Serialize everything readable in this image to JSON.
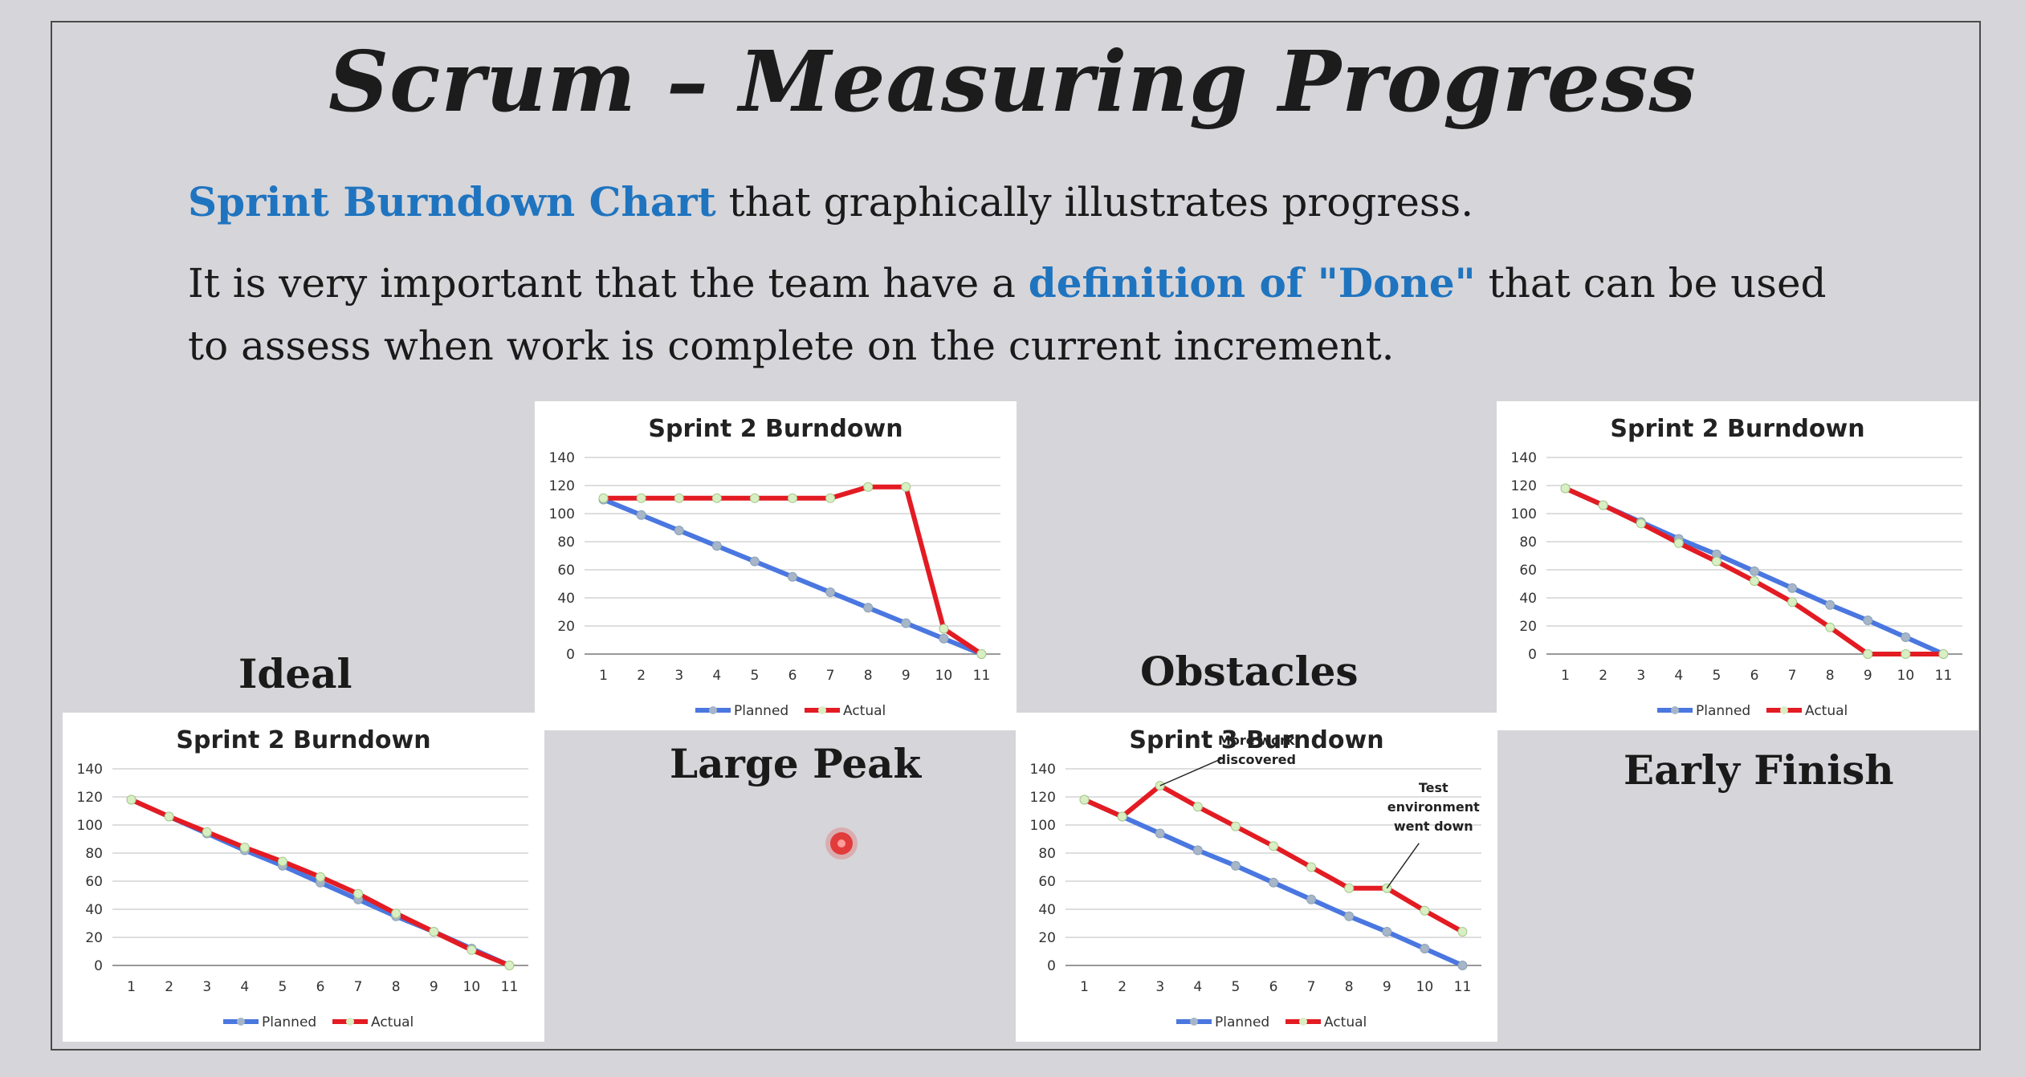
{
  "slide": {
    "title": "Scrum – Measuring Progress",
    "para1": {
      "highlight": "Sprint Burndown Chart",
      "rest": " that graphically illustrates progress."
    },
    "para2": {
      "before": "It is very important that the team have a ",
      "highlight": "definition of \"Done\"",
      "after": " that can be used to assess when work is complete on the current increment."
    },
    "labels": {
      "ideal": "Ideal",
      "large_peak": "Large Peak",
      "obstacles": "Obstacles",
      "early_finish": "Early Finish"
    }
  },
  "colors": {
    "accent": "#1f74bf",
    "planned": "#4a77e0",
    "actual": "#e31b23",
    "marker_planned": "#a6b6c8",
    "marker_actual": "#d8efc4"
  },
  "chart_data": [
    {
      "type": "line",
      "title": "Sprint 2 Burndown",
      "x": [
        1,
        2,
        3,
        4,
        5,
        6,
        7,
        8,
        9,
        10,
        11
      ],
      "ylim": [
        0,
        140
      ],
      "yticks": [
        0,
        20,
        40,
        60,
        80,
        100,
        120,
        140
      ],
      "grid": true,
      "legend": "bottom",
      "series": [
        {
          "name": "Planned",
          "values": [
            118,
            106,
            94,
            82,
            71,
            59,
            47,
            35,
            24,
            12,
            0
          ]
        },
        {
          "name": "Actual",
          "values": [
            118,
            106,
            95,
            84,
            74,
            63,
            51,
            37,
            24,
            11,
            0
          ]
        }
      ],
      "annotations": []
    },
    {
      "type": "line",
      "title": "Sprint 2 Burndown",
      "x": [
        1,
        2,
        3,
        4,
        5,
        6,
        7,
        8,
        9,
        10,
        11
      ],
      "ylim": [
        0,
        140
      ],
      "yticks": [
        0,
        20,
        40,
        60,
        80,
        100,
        120,
        140
      ],
      "grid": true,
      "legend": "bottom",
      "series": [
        {
          "name": "Planned",
          "values": [
            110,
            99,
            88,
            77,
            66,
            55,
            44,
            33,
            22,
            11,
            0
          ]
        },
        {
          "name": "Actual",
          "values": [
            111,
            111,
            111,
            111,
            111,
            111,
            111,
            119,
            119,
            18,
            0
          ]
        }
      ],
      "annotations": []
    },
    {
      "type": "line",
      "title": "Sprint 3 Burndown",
      "x": [
        1,
        2,
        3,
        4,
        5,
        6,
        7,
        8,
        9,
        10,
        11
      ],
      "ylim": [
        0,
        140
      ],
      "yticks": [
        0,
        20,
        40,
        60,
        80,
        100,
        120,
        140
      ],
      "grid": true,
      "legend": "bottom",
      "series": [
        {
          "name": "Planned",
          "values": [
            118,
            106,
            94,
            82,
            71,
            59,
            47,
            35,
            24,
            12,
            0
          ]
        },
        {
          "name": "Actual",
          "values": [
            118,
            106,
            128,
            113,
            99,
            85,
            70,
            55,
            55,
            39,
            24
          ]
        }
      ],
      "annotations": [
        {
          "text": [
            "More work",
            "discovered"
          ],
          "x": 3,
          "y": 128
        },
        {
          "text": [
            "Test",
            "environment",
            "went down"
          ],
          "x": 9,
          "y": 55
        }
      ]
    },
    {
      "type": "line",
      "title": "Sprint 2 Burndown",
      "x": [
        1,
        2,
        3,
        4,
        5,
        6,
        7,
        8,
        9,
        10,
        11
      ],
      "ylim": [
        0,
        140
      ],
      "yticks": [
        0,
        20,
        40,
        60,
        80,
        100,
        120,
        140
      ],
      "grid": true,
      "legend": "bottom",
      "series": [
        {
          "name": "Planned",
          "values": [
            118,
            106,
            94,
            82,
            71,
            59,
            47,
            35,
            24,
            12,
            0
          ]
        },
        {
          "name": "Actual",
          "values": [
            118,
            106,
            93,
            79,
            66,
            52,
            37,
            19,
            0,
            0,
            0
          ]
        }
      ],
      "annotations": []
    }
  ]
}
